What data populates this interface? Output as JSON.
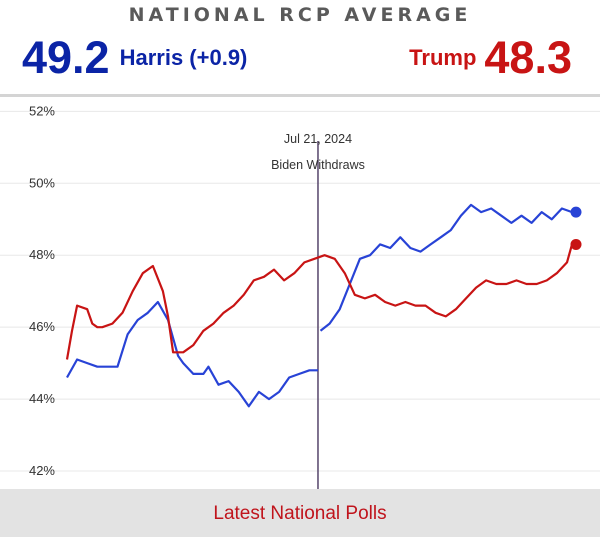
{
  "header": {
    "title": "NATIONAL RCP AVERAGE",
    "harris": {
      "value": "49.2",
      "label": "Harris (+0.9)",
      "color": "#0b24a6"
    },
    "trump": {
      "value": "48.3",
      "label": "Trump",
      "color": "#c81414"
    }
  },
  "chart_data": {
    "type": "line",
    "ylim": [
      41.5,
      52.4
    ],
    "y_ticks": [
      "52%",
      "50%",
      "48%",
      "46%",
      "44%",
      "42%"
    ],
    "y_tick_values": [
      52,
      50,
      48,
      46,
      44,
      42
    ],
    "grid": true,
    "event_marker": {
      "date_label": "Jul 21, 2024",
      "label": "Biden Withdraws",
      "x_fraction": 0.497
    },
    "series": [
      {
        "color": "#2843d6",
        "x": [
          0.0,
          0.02,
          0.04,
          0.06,
          0.08,
          0.1,
          0.12,
          0.14,
          0.16,
          0.18,
          0.2,
          0.22,
          0.23,
          0.25,
          0.27,
          0.28,
          0.3,
          0.32,
          0.34,
          0.36,
          0.38,
          0.4,
          0.42,
          0.44,
          0.46,
          0.48,
          0.497
        ],
        "values": [
          44.6,
          45.1,
          45.0,
          44.9,
          44.9,
          44.9,
          45.8,
          46.2,
          46.4,
          46.7,
          46.2,
          45.2,
          45.0,
          44.7,
          44.7,
          44.9,
          44.4,
          44.5,
          44.2,
          43.8,
          44.2,
          44.0,
          44.2,
          44.6,
          44.7,
          44.8,
          44.8
        ]
      },
      {
        "color": "#2843d6",
        "x": [
          0.502,
          0.52,
          0.54,
          0.56,
          0.58,
          0.6,
          0.62,
          0.64,
          0.66,
          0.68,
          0.7,
          0.72,
          0.74,
          0.76,
          0.78,
          0.8,
          0.82,
          0.84,
          0.86,
          0.88,
          0.9,
          0.92,
          0.94,
          0.96,
          0.98,
          1.0
        ],
        "values": [
          45.9,
          46.1,
          46.5,
          47.2,
          47.9,
          48.0,
          48.3,
          48.2,
          48.5,
          48.2,
          48.1,
          48.3,
          48.5,
          48.7,
          49.1,
          49.4,
          49.2,
          49.3,
          49.1,
          48.9,
          49.1,
          48.9,
          49.2,
          49.0,
          49.3,
          49.2
        ]
      },
      {
        "color": "#c81414",
        "x": [
          0.0,
          0.01,
          0.02,
          0.04,
          0.05,
          0.06,
          0.07,
          0.09,
          0.11,
          0.13,
          0.15,
          0.17,
          0.19,
          0.2,
          0.21,
          0.23,
          0.25,
          0.27,
          0.29,
          0.31,
          0.33,
          0.35,
          0.37,
          0.39,
          0.41,
          0.43,
          0.45,
          0.47,
          0.49,
          0.51,
          0.53,
          0.55,
          0.57,
          0.59,
          0.61,
          0.63,
          0.65,
          0.67,
          0.69,
          0.71,
          0.73,
          0.75,
          0.77,
          0.79,
          0.81,
          0.83,
          0.85,
          0.87,
          0.89,
          0.91,
          0.93,
          0.95,
          0.97,
          0.99,
          1.0
        ],
        "values": [
          45.1,
          45.9,
          46.6,
          46.5,
          46.1,
          46.0,
          46.0,
          46.1,
          46.4,
          47.0,
          47.5,
          47.7,
          47.0,
          46.3,
          45.3,
          45.3,
          45.5,
          45.9,
          46.1,
          46.4,
          46.6,
          46.9,
          47.3,
          47.4,
          47.6,
          47.3,
          47.5,
          47.8,
          47.9,
          48.0,
          47.9,
          47.5,
          46.9,
          46.8,
          46.9,
          46.7,
          46.6,
          46.7,
          46.6,
          46.6,
          46.4,
          46.3,
          46.5,
          46.8,
          47.1,
          47.3,
          47.2,
          47.2,
          47.3,
          47.2,
          47.2,
          47.3,
          47.5,
          47.8,
          48.3
        ]
      }
    ]
  },
  "footer": {
    "link_label": "Latest National Polls"
  }
}
